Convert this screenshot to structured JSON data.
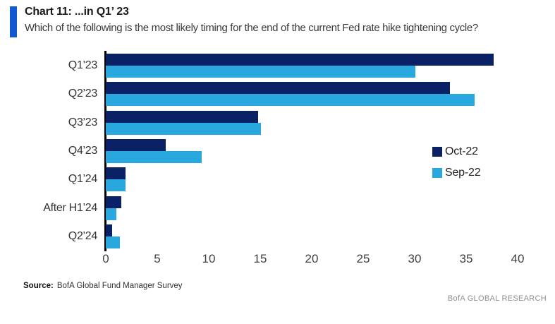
{
  "header": {
    "title": "Chart 11: ...in Q1’ 23",
    "subtitle": "Which of the following is the most likely timing for the end of the current Fed rate hike tightening cycle?"
  },
  "chart_data": {
    "type": "bar",
    "orientation": "horizontal",
    "title": "Chart 11: ...in Q1' 23",
    "question": "Which of the following is the most likely timing for the end of the current Fed rate hike tightening cycle?",
    "categories": [
      "Q1’23",
      "Q2’23",
      "Q3’23",
      "Q4’23",
      "Q1’24",
      "After H1’24",
      "Q2’24"
    ],
    "series": [
      {
        "name": "Oct-22",
        "color": "#0a2166",
        "values": [
          37.7,
          33.4,
          14.8,
          5.8,
          1.9,
          1.5,
          0.6
        ]
      },
      {
        "name": "Sep-22",
        "color": "#29a8e0",
        "values": [
          30.1,
          35.8,
          15.1,
          9.3,
          1.9,
          1.0,
          1.4
        ]
      }
    ],
    "x_ticks": [
      0,
      5,
      10,
      15,
      20,
      25,
      30,
      35,
      40
    ],
    "xlim": [
      0,
      40
    ],
    "xlabel": "",
    "ylabel": "",
    "grid": false,
    "legend_position": "middle-right"
  },
  "footer": {
    "source_label": "Source:",
    "source_text": "BofA Global Fund Manager Survey",
    "branding": "BofA GLOBAL RESEARCH"
  },
  "colors": {
    "accent_bar": "#1159d2",
    "navy_series": "#0a2166",
    "light_blue_series": "#29a8e0",
    "axis_line": "#000000",
    "branding_text": "#8e908a"
  }
}
